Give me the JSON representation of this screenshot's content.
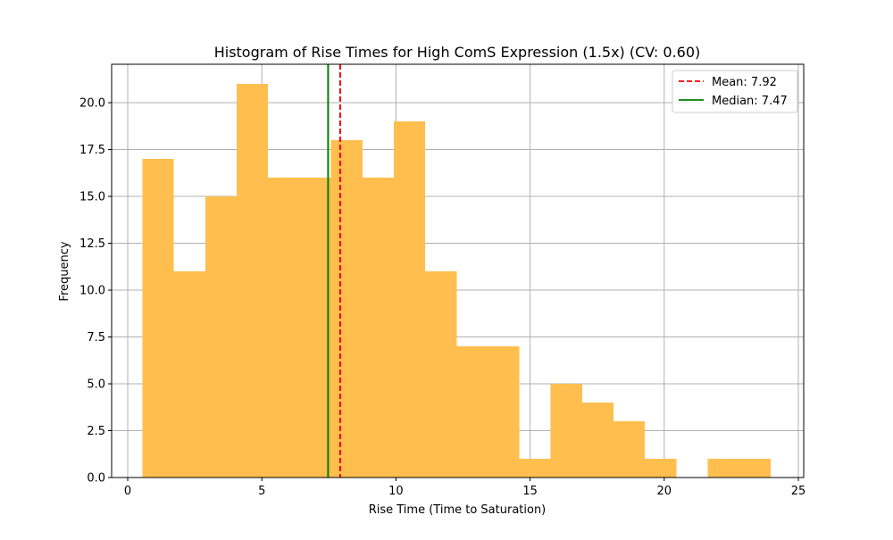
{
  "chart_data": {
    "type": "bar",
    "title": "Histogram of Rise Times for High ComS Expression (1.5x) (CV: 0.60)",
    "xlabel": "Rise Time (Time to Saturation)",
    "ylabel": "Frequency",
    "xlim": [
      -0.6,
      25.2
    ],
    "ylim": [
      0,
      22.05
    ],
    "x_ticks": [
      0,
      5,
      10,
      15,
      20,
      25
    ],
    "y_ticks": [
      0.0,
      2.5,
      5.0,
      7.5,
      10.0,
      12.5,
      15.0,
      17.5,
      20.0
    ],
    "x_tick_labels": [
      "0",
      "5",
      "10",
      "15",
      "20",
      "25"
    ],
    "y_tick_labels": [
      "0.0",
      "2.5",
      "5.0",
      "7.5",
      "10.0",
      "12.5",
      "15.0",
      "17.5",
      "20.0"
    ],
    "grid": true,
    "bins": [
      {
        "start": 0.55,
        "end": 1.72,
        "count": 17
      },
      {
        "start": 1.72,
        "end": 2.89,
        "count": 11
      },
      {
        "start": 2.89,
        "end": 4.06,
        "count": 15
      },
      {
        "start": 4.06,
        "end": 5.23,
        "count": 21
      },
      {
        "start": 5.23,
        "end": 6.4,
        "count": 16
      },
      {
        "start": 6.4,
        "end": 7.58,
        "count": 16
      },
      {
        "start": 7.58,
        "end": 8.75,
        "count": 18
      },
      {
        "start": 8.75,
        "end": 9.92,
        "count": 16
      },
      {
        "start": 9.92,
        "end": 11.09,
        "count": 19
      },
      {
        "start": 11.09,
        "end": 12.26,
        "count": 11
      },
      {
        "start": 12.26,
        "end": 13.43,
        "count": 7
      },
      {
        "start": 13.43,
        "end": 14.6,
        "count": 7
      },
      {
        "start": 14.6,
        "end": 15.77,
        "count": 1
      },
      {
        "start": 15.77,
        "end": 16.94,
        "count": 5
      },
      {
        "start": 16.94,
        "end": 18.11,
        "count": 4
      },
      {
        "start": 18.11,
        "end": 19.28,
        "count": 3
      },
      {
        "start": 19.28,
        "end": 20.45,
        "count": 1
      },
      {
        "start": 20.45,
        "end": 21.62,
        "count": 0
      },
      {
        "start": 21.62,
        "end": 22.79,
        "count": 1
      },
      {
        "start": 22.79,
        "end": 23.96,
        "count": 1
      }
    ],
    "bar_color": "#ffbe4d",
    "mean": {
      "value": 7.92,
      "label": "Mean: 7.92",
      "color": "#ff0000",
      "style": "dashed"
    },
    "median": {
      "value": 7.47,
      "label": "Median: 7.47",
      "color": "#008000",
      "style": "solid"
    },
    "legend_placement": "top-right"
  }
}
